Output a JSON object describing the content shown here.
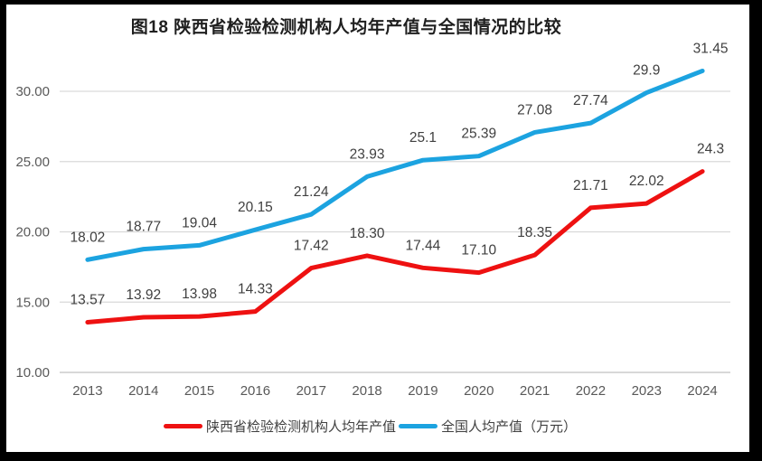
{
  "window": {
    "border_color": "#000000",
    "background_color": "#ffffff"
  },
  "chart_data": {
    "type": "line",
    "title": "图18 陕西省检验检测机构人均年产值与全国情况的比较",
    "categories": [
      "2013",
      "2014",
      "2015",
      "2016",
      "2017",
      "2018",
      "2019",
      "2020",
      "2021",
      "2022",
      "2023",
      "2024"
    ],
    "series": [
      {
        "name": "陕西省检验检测机构人均年产值",
        "color": "#ee1111",
        "values": [
          13.57,
          13.92,
          13.98,
          14.33,
          17.42,
          18.3,
          17.44,
          17.1,
          18.35,
          21.71,
          22.02,
          24.3
        ],
        "point_labels": [
          "13.57",
          "13.92",
          "13.98",
          "14.33",
          "17.42",
          "18.30",
          "17.44",
          "17.10",
          "18.35",
          "21.71",
          "22.02",
          "24.3"
        ]
      },
      {
        "name": "全国人均产值（万元）",
        "color": "#1ca3e0",
        "values": [
          18.02,
          18.77,
          19.04,
          20.15,
          21.24,
          23.93,
          25.1,
          25.39,
          27.08,
          27.74,
          29.9,
          31.45
        ],
        "point_labels": [
          "18.02",
          "18.77",
          "19.04",
          "20.15",
          "21.24",
          "23.93",
          "25.1",
          "25.39",
          "27.08",
          "27.74",
          "29.9",
          "31.45"
        ]
      }
    ],
    "xlabel": "",
    "ylabel": "",
    "ylim": [
      10,
      32.5
    ],
    "yticks": [
      {
        "value": 10,
        "label": "10.00"
      },
      {
        "value": 15,
        "label": "15.00"
      },
      {
        "value": 20,
        "label": "20.00"
      },
      {
        "value": 25,
        "label": "25.00"
      },
      {
        "value": 30,
        "label": "30.00"
      }
    ],
    "grid": true,
    "legend_position": "bottom",
    "gridline_color": "#d9d9d9",
    "axisline_color": "#c0c0c0",
    "axis_text_color": "#595959",
    "label_text_color": "#404040",
    "title_color": "#1f1f1f"
  }
}
